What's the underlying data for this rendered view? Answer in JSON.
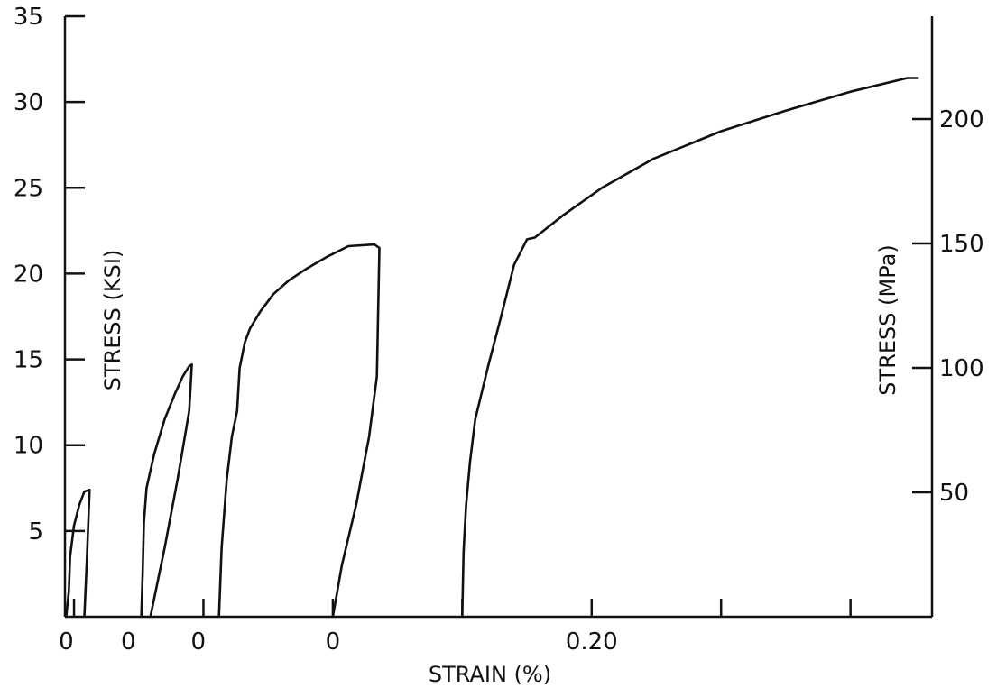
{
  "chart_data": {
    "type": "line",
    "title": "",
    "xlabel": "STRAIN (%)",
    "ylabel_left": "STRESS (KSI)",
    "ylabel_right": "STRESS (MPa)",
    "xlim": [
      -0.0035,
      0.3315
    ],
    "ylim_left": [
      0,
      35
    ],
    "ylim_right": [
      0,
      241.3
    ],
    "x_tick_marks": [
      0,
      0.05,
      0.1,
      0.15,
      0.2,
      0.25,
      0.3
    ],
    "x_tick_labels": [
      {
        "x": -0.003,
        "label": "0"
      },
      {
        "x": 0.021,
        "label": "0"
      },
      {
        "x": 0.048,
        "label": "0"
      },
      {
        "x": 0.1,
        "label": "0"
      },
      {
        "x": 0.2,
        "label": "0.20"
      }
    ],
    "y_ticks_left": [
      5,
      10,
      15,
      20,
      25,
      30,
      35
    ],
    "y_ticks_right": [
      50,
      100,
      150,
      200
    ],
    "grid": false,
    "series": [
      {
        "x": [
          -0.003,
          -0.002,
          -0.0015,
          0.0,
          0.002,
          0.004,
          0.006,
          0.005,
          0.004
        ],
        "y": [
          0,
          1.5,
          3.5,
          5.3,
          6.5,
          7.3,
          7.4,
          3.5,
          0
        ]
      },
      {
        "x": [
          0.026,
          0.0265,
          0.027,
          0.028,
          0.031,
          0.035,
          0.039,
          0.042,
          0.0445,
          0.0455,
          0.0445,
          0.04,
          0.035,
          0.0295
        ],
        "y": [
          0,
          2.5,
          5.5,
          7.5,
          9.5,
          11.5,
          13.0,
          14.0,
          14.6,
          14.7,
          12.0,
          8.0,
          4.0,
          0
        ]
      },
      {
        "x": [
          0.056,
          0.057,
          0.059,
          0.061,
          0.063,
          0.064,
          0.066,
          0.068,
          0.072,
          0.077,
          0.083,
          0.09,
          0.098,
          0.106,
          0.116,
          0.118,
          0.117,
          0.114,
          0.109,
          0.1035,
          0.1
        ],
        "y": [
          0,
          4.0,
          8.0,
          10.5,
          12.0,
          14.5,
          16.0,
          16.8,
          17.8,
          18.8,
          19.6,
          20.3,
          21.0,
          21.6,
          21.7,
          21.5,
          14.0,
          10.5,
          6.5,
          3.0,
          0
        ]
      },
      {
        "x": [
          0.15,
          0.1505,
          0.1515,
          0.153,
          0.155,
          0.16,
          0.165,
          0.17,
          0.175,
          0.178,
          0.189,
          0.204,
          0.224,
          0.25,
          0.275,
          0.3,
          0.322,
          0.326
        ],
        "y": [
          0,
          3.8,
          6.5,
          9.0,
          11.5,
          14.6,
          17.5,
          20.5,
          22.0,
          22.1,
          23.4,
          25.0,
          26.7,
          28.3,
          29.5,
          30.6,
          31.4,
          31.4
        ]
      }
    ]
  }
}
